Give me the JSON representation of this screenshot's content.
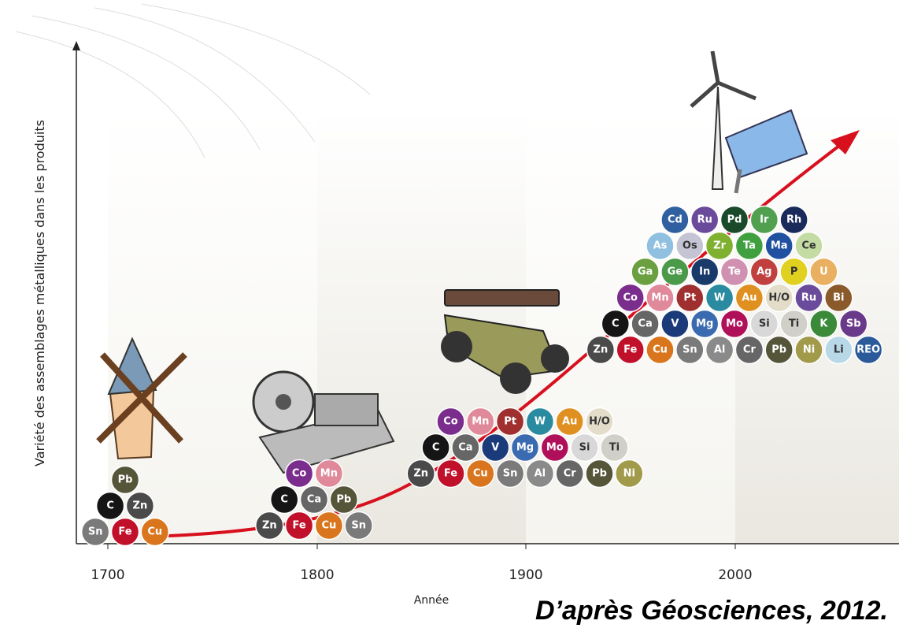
{
  "axis": {
    "y_label": "Variété des assemblages métalliques dans les produits",
    "x_label": "Année",
    "x_ticks": [
      "1700",
      "1800",
      "1900",
      "2000"
    ]
  },
  "groups": [
    {
      "rows": [
        [
          {
            "symbol": "Sn",
            "color": "#7a7a7a"
          },
          {
            "symbol": "Fe",
            "color": "#c0102a"
          },
          {
            "symbol": "Cu",
            "color": "#d9751c"
          }
        ],
        [
          {
            "symbol": "C",
            "color": "#151515"
          },
          {
            "symbol": "Zn",
            "color": "#4a4a4a"
          }
        ],
        [
          {
            "symbol": "Pb",
            "color": "#55553a"
          }
        ]
      ]
    },
    {
      "rows": [
        [
          {
            "symbol": "Zn",
            "color": "#4a4a4a"
          },
          {
            "symbol": "Fe",
            "color": "#c0102a"
          },
          {
            "symbol": "Cu",
            "color": "#d9751c"
          },
          {
            "symbol": "Sn",
            "color": "#7a7a7a"
          }
        ],
        [
          {
            "symbol": "C",
            "color": "#151515"
          },
          {
            "symbol": "Ca",
            "color": "#666666"
          },
          {
            "symbol": "Pb",
            "color": "#55553a"
          }
        ],
        [
          {
            "symbol": "Co",
            "color": "#7b2d8e"
          },
          {
            "symbol": "Mn",
            "color": "#e0899a"
          }
        ]
      ]
    },
    {
      "rows": [
        [
          {
            "symbol": "Zn",
            "color": "#4a4a4a"
          },
          {
            "symbol": "Fe",
            "color": "#c0102a"
          },
          {
            "symbol": "Cu",
            "color": "#d9751c"
          },
          {
            "symbol": "Sn",
            "color": "#7a7a7a"
          },
          {
            "symbol": "Al",
            "color": "#8a8a8a"
          },
          {
            "symbol": "Cr",
            "color": "#666666"
          },
          {
            "symbol": "Pb",
            "color": "#55553a"
          },
          {
            "symbol": "Ni",
            "color": "#a09a4a"
          }
        ],
        [
          {
            "symbol": "C",
            "color": "#151515"
          },
          {
            "symbol": "Ca",
            "color": "#666666"
          },
          {
            "symbol": "V",
            "color": "#1a3a7a"
          },
          {
            "symbol": "Mg",
            "color": "#3a6ab0"
          },
          {
            "symbol": "Mo",
            "color": "#b0105a"
          },
          {
            "symbol": "Si",
            "color": "#d8d8d8"
          },
          {
            "symbol": "Ti",
            "color": "#d0d0c8"
          }
        ],
        [
          {
            "symbol": "Co",
            "color": "#7b2d8e"
          },
          {
            "symbol": "Mn",
            "color": "#e0899a"
          },
          {
            "symbol": "Pt",
            "color": "#a03030"
          },
          {
            "symbol": "W",
            "color": "#2a8aa0"
          },
          {
            "symbol": "Au",
            "color": "#e09020"
          },
          {
            "symbol": "H/O",
            "color": "#e2dcc8"
          }
        ]
      ]
    },
    {
      "rows": [
        [
          {
            "symbol": "Zn",
            "color": "#4a4a4a"
          },
          {
            "symbol": "Fe",
            "color": "#c0102a"
          },
          {
            "symbol": "Cu",
            "color": "#d9751c"
          },
          {
            "symbol": "Sn",
            "color": "#7a7a7a"
          },
          {
            "symbol": "Al",
            "color": "#8a8a8a"
          },
          {
            "symbol": "Cr",
            "color": "#666666"
          },
          {
            "symbol": "Pb",
            "color": "#55553a"
          },
          {
            "symbol": "Ni",
            "color": "#a09a4a"
          },
          {
            "symbol": "Li",
            "color": "#b8d8e8"
          },
          {
            "symbol": "REO",
            "color": "#2a5a9a"
          }
        ],
        [
          {
            "symbol": "C",
            "color": "#151515"
          },
          {
            "symbol": "Ca",
            "color": "#666666"
          },
          {
            "symbol": "V",
            "color": "#1a3a7a"
          },
          {
            "symbol": "Mg",
            "color": "#3a6ab0"
          },
          {
            "symbol": "Mo",
            "color": "#b0105a"
          },
          {
            "symbol": "Si",
            "color": "#d8d8d8"
          },
          {
            "symbol": "Ti",
            "color": "#d0d0c8"
          },
          {
            "symbol": "K",
            "color": "#3a8a3a"
          },
          {
            "symbol": "Sb",
            "color": "#6a3a8a"
          }
        ],
        [
          {
            "symbol": "Co",
            "color": "#7b2d8e"
          },
          {
            "symbol": "Mn",
            "color": "#e0899a"
          },
          {
            "symbol": "Pt",
            "color": "#a03030"
          },
          {
            "symbol": "W",
            "color": "#2a8aa0"
          },
          {
            "symbol": "Au",
            "color": "#e09020"
          },
          {
            "symbol": "H/O",
            "color": "#e2dcc8"
          },
          {
            "symbol": "Ru",
            "color": "#6a4a9a"
          },
          {
            "symbol": "Bi",
            "color": "#8a5a2a"
          }
        ],
        [
          {
            "symbol": "Ga",
            "color": "#6aa040"
          },
          {
            "symbol": "Ge",
            "color": "#4a9a4a"
          },
          {
            "symbol": "In",
            "color": "#1a3a6a"
          },
          {
            "symbol": "Te",
            "color": "#d090b0"
          },
          {
            "symbol": "Ag",
            "color": "#c04040"
          },
          {
            "symbol": "P",
            "color": "#e0d020"
          },
          {
            "symbol": "U",
            "color": "#e8b060"
          }
        ],
        [
          {
            "symbol": "As",
            "color": "#90c0e0"
          },
          {
            "symbol": "Os",
            "color": "#c4c4d4"
          },
          {
            "symbol": "Zr",
            "color": "#80b030"
          },
          {
            "symbol": "Ta",
            "color": "#40a040"
          },
          {
            "symbol": "Ma",
            "color": "#2050a0"
          },
          {
            "symbol": "Ce",
            "color": "#c4dca4"
          }
        ],
        [
          {
            "symbol": "Cd",
            "color": "#3060a0"
          },
          {
            "symbol": "Ru",
            "color": "#6a4a9a"
          },
          {
            "symbol": "Pd",
            "color": "#1a4a2a"
          },
          {
            "symbol": "Ir",
            "color": "#50a050"
          },
          {
            "symbol": "Rh",
            "color": "#1a2a5a"
          }
        ]
      ]
    }
  ],
  "source": "D’après Géosciences, 2012."
}
